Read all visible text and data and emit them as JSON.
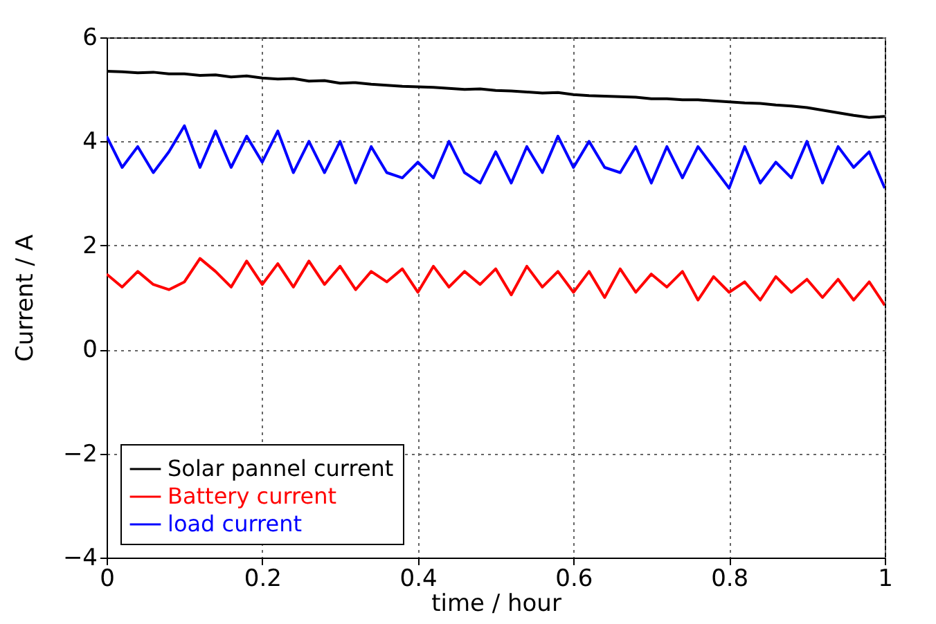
{
  "chart_data": {
    "type": "line",
    "xlabel": "time  /  hour",
    "ylabel": "Current  /  A",
    "x": [
      0,
      0.02,
      0.04,
      0.06,
      0.08,
      0.1,
      0.12,
      0.14,
      0.16,
      0.18,
      0.2,
      0.22,
      0.24,
      0.26,
      0.28,
      0.3,
      0.32,
      0.34,
      0.36,
      0.38,
      0.4,
      0.42,
      0.44,
      0.46,
      0.48,
      0.5,
      0.52,
      0.54,
      0.56,
      0.58,
      0.6,
      0.62,
      0.64,
      0.66,
      0.68,
      0.7,
      0.72,
      0.74,
      0.76,
      0.78,
      0.8,
      0.82,
      0.84,
      0.86,
      0.88,
      0.9,
      0.92,
      0.94,
      0.96,
      0.98,
      1.0
    ],
    "series": [
      {
        "name": "Solar pannel current",
        "color": "#000000",
        "values": [
          5.35,
          5.34,
          5.32,
          5.33,
          5.3,
          5.3,
          5.27,
          5.28,
          5.24,
          5.26,
          5.22,
          5.2,
          5.21,
          5.16,
          5.17,
          5.12,
          5.13,
          5.1,
          5.08,
          5.06,
          5.05,
          5.04,
          5.02,
          5.0,
          5.01,
          4.98,
          4.97,
          4.95,
          4.93,
          4.94,
          4.9,
          4.88,
          4.87,
          4.86,
          4.85,
          4.82,
          4.82,
          4.8,
          4.8,
          4.78,
          4.76,
          4.74,
          4.73,
          4.7,
          4.68,
          4.65,
          4.6,
          4.55,
          4.5,
          4.46,
          4.48
        ]
      },
      {
        "name": "Battery current",
        "color": "#ff0000",
        "values": [
          1.45,
          1.2,
          1.5,
          1.25,
          1.15,
          1.3,
          1.75,
          1.5,
          1.2,
          1.7,
          1.25,
          1.65,
          1.2,
          1.7,
          1.25,
          1.6,
          1.15,
          1.5,
          1.3,
          1.55,
          1.1,
          1.6,
          1.2,
          1.5,
          1.25,
          1.55,
          1.05,
          1.6,
          1.2,
          1.5,
          1.1,
          1.5,
          1.0,
          1.55,
          1.1,
          1.45,
          1.2,
          1.5,
          0.95,
          1.4,
          1.1,
          1.3,
          0.95,
          1.4,
          1.1,
          1.35,
          1.0,
          1.35,
          0.95,
          1.3,
          0.85
        ]
      },
      {
        "name": "load current",
        "color": "#0000ff",
        "values": [
          4.1,
          3.5,
          3.9,
          3.4,
          3.8,
          4.3,
          3.5,
          4.2,
          3.5,
          4.1,
          3.6,
          4.2,
          3.4,
          4.0,
          3.4,
          4.0,
          3.2,
          3.9,
          3.4,
          3.3,
          3.6,
          3.3,
          4.0,
          3.4,
          3.2,
          3.8,
          3.2,
          3.9,
          3.4,
          4.1,
          3.5,
          4.0,
          3.5,
          3.4,
          3.9,
          3.2,
          3.9,
          3.3,
          3.9,
          3.5,
          3.1,
          3.9,
          3.2,
          3.6,
          3.3,
          4.0,
          3.2,
          3.9,
          3.5,
          3.8,
          3.1
        ]
      }
    ],
    "xlim": [
      0,
      1
    ],
    "xticks": [
      0,
      0.2,
      0.4,
      0.6,
      0.8,
      1
    ],
    "ylim": [
      -4,
      6
    ],
    "yticks": [
      -4,
      -2,
      0,
      2,
      4,
      6
    ],
    "grid": true,
    "legend": "bottom left",
    "line_style": "solid",
    "marker": "none"
  }
}
